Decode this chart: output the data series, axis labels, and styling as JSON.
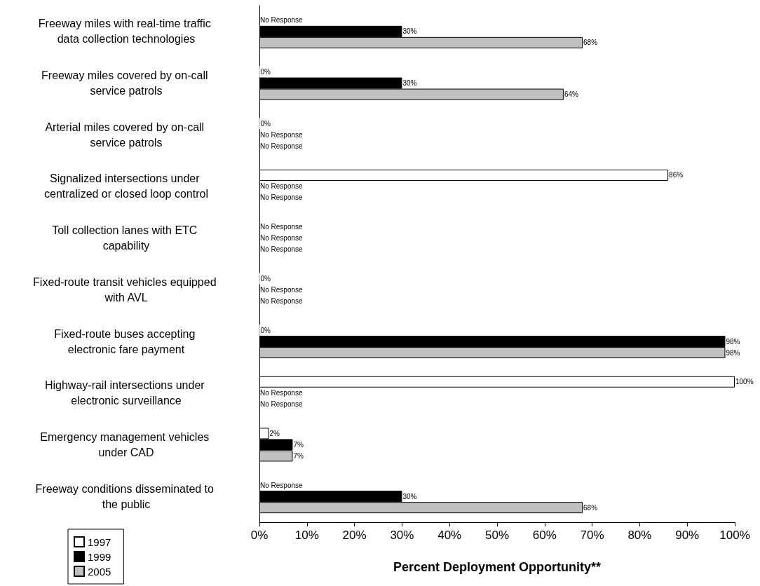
{
  "chart_data": {
    "type": "bar",
    "orientation": "horizontal",
    "xlabel": "Percent Deployment Opportunity**",
    "categories": [
      "Freeway miles with real-time traffic data collection technologies",
      "Freeway miles covered by on-call service patrols",
      "Arterial miles covered by on-call service patrols",
      "Signalized intersections under centralized or closed loop control",
      "Toll collection lanes with ETC capability",
      "Fixed-route transit vehicles equipped with AVL",
      "Fixed-route buses accepting electronic fare payment",
      "Highway-rail intersections under electronic surveillance",
      "Emergency management vehicles under CAD",
      "Freeway conditions disseminated to the public"
    ],
    "series": [
      {
        "name": "1997",
        "color": "#ffffff",
        "values": [
          null,
          0,
          0,
          86,
          null,
          0,
          0,
          100,
          2,
          null
        ],
        "value_labels": [
          "No Response",
          "0%",
          "0%",
          "86%",
          "No Response",
          "0%",
          "0%",
          "100%",
          "2%",
          "No Response"
        ]
      },
      {
        "name": "1999",
        "color": "#000000",
        "values": [
          30,
          30,
          null,
          null,
          null,
          null,
          98,
          null,
          7,
          30
        ],
        "value_labels": [
          "30%",
          "30%",
          "No Response",
          "No Response",
          "No Response",
          "No Response",
          "98%",
          "No Response",
          "7%",
          "30%"
        ]
      },
      {
        "name": "2005",
        "color": "#c0c0c0",
        "values": [
          68,
          64,
          null,
          null,
          null,
          null,
          98,
          null,
          7,
          68
        ],
        "value_labels": [
          "68%",
          "64%",
          "No Response",
          "No Response",
          "No Response",
          "No Response",
          "98%",
          "No Response",
          "7%",
          "68%"
        ]
      }
    ],
    "xlim": [
      0,
      100
    ],
    "xticks": [
      {
        "value": 0,
        "label": "0%"
      },
      {
        "value": 10,
        "label": "10%"
      },
      {
        "value": 20,
        "label": "20%"
      },
      {
        "value": 30,
        "label": "30%"
      },
      {
        "value": 40,
        "label": "40%"
      },
      {
        "value": 50,
        "label": "50%"
      },
      {
        "value": 60,
        "label": "60%"
      },
      {
        "value": 70,
        "label": "70%"
      },
      {
        "value": 80,
        "label": "80%"
      },
      {
        "value": 90,
        "label": "90%"
      },
      {
        "value": 100,
        "label": "100%"
      }
    ],
    "grid": false,
    "legend": "bottom left"
  }
}
